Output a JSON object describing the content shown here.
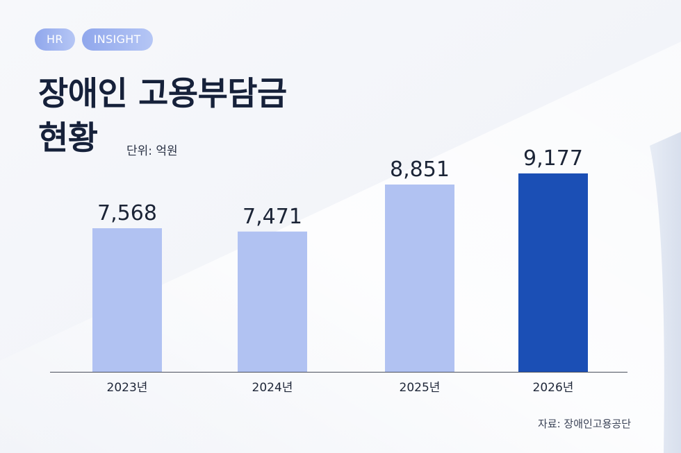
{
  "tags": [
    "HR",
    "INSIGHT"
  ],
  "title_line1": "장애인 고용부담금",
  "title_line2": "현황",
  "unit": "단위: 억원",
  "source": "자료: 장애인고용공단",
  "colors": {
    "bar": "#b1c2f2",
    "highlight": "#1b4fb5",
    "axis": "#4a4f5c"
  },
  "chart_data": {
    "type": "bar",
    "title": "장애인 고용부담금 현황",
    "ylabel": "단위: 억원",
    "categories": [
      "2023년",
      "2024년",
      "2025년",
      "2026년"
    ],
    "values": [
      7568,
      7471,
      8851,
      9177
    ],
    "value_labels": [
      "7,568",
      "7,471",
      "8,851",
      "9,177"
    ],
    "highlight_index": 3,
    "ylim": [
      0,
      10000
    ],
    "grid": false,
    "legend": "none"
  }
}
